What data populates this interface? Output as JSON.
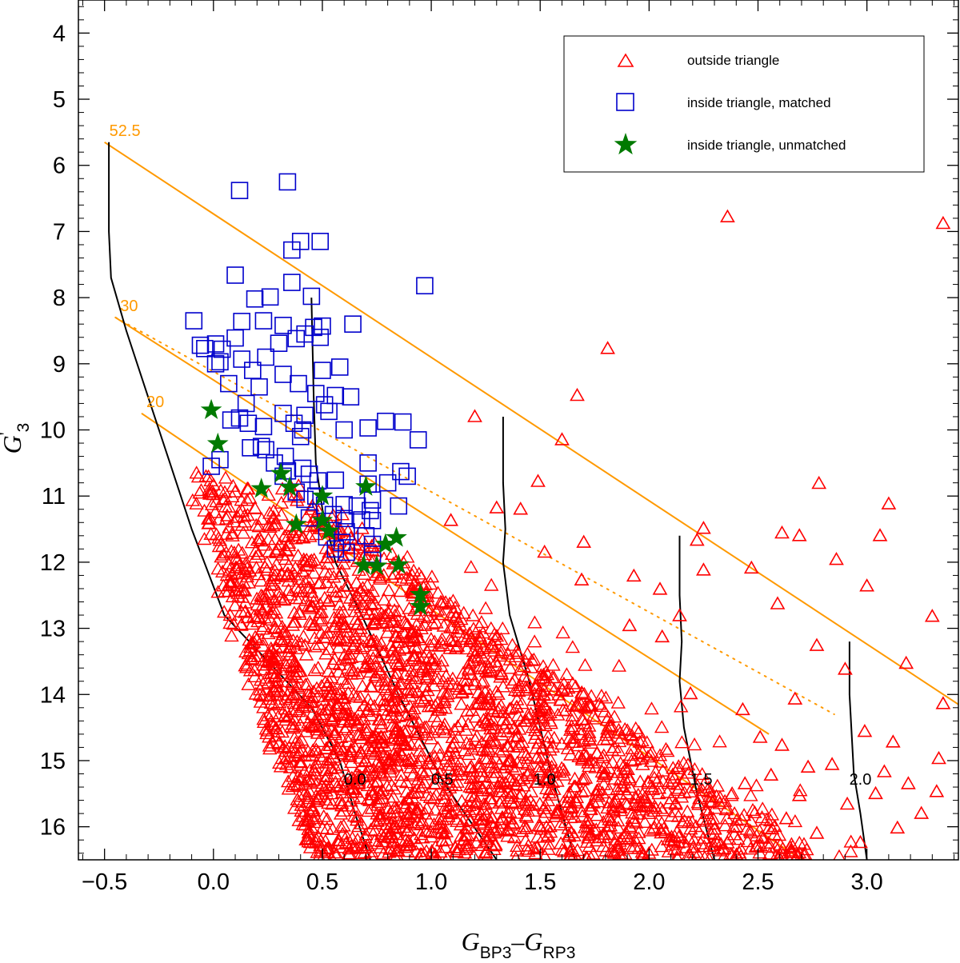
{
  "chart_data": {
    "type": "scatter",
    "x_axis": {
      "label_main": "G",
      "label_sub1": "BP3",
      "label_dash": "–",
      "label_main2": "G",
      "label_sub2": "RP3",
      "range": [
        -0.62,
        3.42
      ],
      "ticks": [
        "−0.5",
        "0.0",
        "0.5",
        "1.0",
        "1.5",
        "2.0",
        "2.5",
        "3.0"
      ],
      "tick_values": [
        -0.5,
        0.0,
        0.5,
        1.0,
        1.5,
        2.0,
        2.5,
        3.0
      ]
    },
    "y_axis": {
      "label_main": "G",
      "label_sup": "'",
      "label_sub": "3",
      "range": [
        3.5,
        16.5
      ],
      "inverted": true,
      "ticks": [
        "4",
        "5",
        "6",
        "7",
        "8",
        "9",
        "10",
        "11",
        "12",
        "13",
        "14",
        "15",
        "16"
      ],
      "tick_values": [
        4,
        5,
        6,
        7,
        8,
        9,
        10,
        11,
        12,
        13,
        14,
        15,
        16
      ]
    },
    "grid": false,
    "legend": {
      "placement": "top-right",
      "entries": [
        {
          "label": "outside triangle",
          "marker": "triangle",
          "color": "#ff0000"
        },
        {
          "label": "inside triangle, matched",
          "marker": "square",
          "color": "#0000cc"
        },
        {
          "label": "inside triangle, unmatched",
          "marker": "star",
          "color": "#007a00"
        }
      ]
    },
    "colors": {
      "triangle": "#ff0000",
      "square": "#0000cc",
      "star": "#007a00",
      "orange": "#ff9900",
      "black": "#000000"
    },
    "extinction_lines": [
      {
        "label": "52.5",
        "x": [
          -0.5,
          3.42
        ],
        "y": [
          5.65,
          14.15
        ],
        "style": "solid"
      },
      {
        "label": "30",
        "x": [
          -0.45,
          2.55
        ],
        "y": [
          8.3,
          14.6
        ],
        "style": "solid"
      },
      {
        "label": "",
        "x": [
          -0.45,
          2.85
        ],
        "y": [
          8.3,
          14.3
        ],
        "style": "dotted"
      },
      {
        "label": "20",
        "x": [
          -0.33,
          2.7
        ],
        "y": [
          9.75,
          16.5
        ],
        "style": "solid"
      }
    ],
    "isochrones": [
      {
        "label": "0.0",
        "x": [
          -0.48,
          -0.48,
          -0.47,
          -0.4,
          -0.3,
          -0.2,
          -0.1,
          0.05,
          0.25,
          0.45,
          0.58,
          0.65,
          0.72
        ],
        "y": [
          5.65,
          7.0,
          7.7,
          8.5,
          9.5,
          10.5,
          11.5,
          12.8,
          13.5,
          14.2,
          15.0,
          15.8,
          16.5
        ]
      },
      {
        "label": "0.5",
        "x": [
          0.45,
          0.46,
          0.47,
          0.5,
          0.56,
          0.68,
          0.85,
          1.05,
          1.3
        ],
        "y": [
          8.0,
          9.5,
          10.5,
          11.2,
          12.0,
          12.8,
          14.0,
          15.3,
          16.5
        ]
      },
      {
        "label": "1.0",
        "x": [
          1.33,
          1.33,
          1.34,
          1.33,
          1.36,
          1.45,
          1.55,
          1.66
        ],
        "y": [
          9.8,
          10.8,
          11.5,
          12.0,
          12.8,
          13.8,
          15.2,
          16.5
        ]
      },
      {
        "label": "1.5",
        "x": [
          2.14,
          2.14,
          2.15,
          2.14,
          2.16,
          2.22,
          2.3
        ],
        "y": [
          11.6,
          12.5,
          13.2,
          13.8,
          14.5,
          15.5,
          16.5
        ]
      },
      {
        "label": "2.0",
        "x": [
          2.92,
          2.92,
          2.93,
          2.94,
          2.97,
          3.0
        ],
        "y": [
          13.2,
          14.0,
          14.6,
          15.2,
          15.8,
          16.5
        ]
      }
    ],
    "iso_label_positions": [
      {
        "label": "0.0",
        "x": 0.65,
        "y": 15.28
      },
      {
        "label": "0.5",
        "x": 1.05,
        "y": 15.28
      },
      {
        "label": "1.0",
        "x": 1.52,
        "y": 15.28
      },
      {
        "label": "1.5",
        "x": 2.24,
        "y": 15.28
      },
      {
        "label": "2.0",
        "x": 2.97,
        "y": 15.28
      }
    ],
    "series": [
      {
        "name": "outside triangle",
        "marker": "triangle",
        "points": [
          [
            2.36,
            6.78
          ],
          [
            3.35,
            6.88
          ],
          [
            1.81,
            8.77
          ],
          [
            1.67,
            9.48
          ],
          [
            1.2,
            9.8
          ],
          [
            1.6,
            10.15
          ],
          [
            0.0,
            10.98
          ],
          [
            0.1,
            10.94
          ],
          [
            1.49,
            10.78
          ],
          [
            2.78,
            10.81
          ],
          [
            3.1,
            11.12
          ],
          [
            1.3,
            11.18
          ],
          [
            1.41,
            11.2
          ],
          [
            2.25,
            11.49
          ],
          [
            2.69,
            11.6
          ],
          [
            1.09,
            11.37
          ],
          [
            1.52,
            11.85
          ],
          [
            1.7,
            11.7
          ],
          [
            2.22,
            11.67
          ],
          [
            2.61,
            11.56
          ],
          [
            3.06,
            11.6
          ],
          [
            2.47,
            12.09
          ],
          [
            2.86,
            11.96
          ],
          [
            2.25,
            12.12
          ],
          [
            1.93,
            12.21
          ],
          [
            1.69,
            12.27
          ],
          [
            3.0,
            12.36
          ],
          [
            2.05,
            12.41
          ],
          [
            2.59,
            12.63
          ],
          [
            3.3,
            12.82
          ],
          [
            2.14,
            12.81
          ],
          [
            1.91,
            12.96
          ],
          [
            2.06,
            13.13
          ],
          [
            2.77,
            13.26
          ],
          [
            3.18,
            13.53
          ],
          [
            2.9,
            13.62
          ],
          [
            2.19,
            13.99
          ],
          [
            2.67,
            14.07
          ],
          [
            3.35,
            14.14
          ],
          [
            2.43,
            14.23
          ],
          [
            2.99,
            14.56
          ],
          [
            2.51,
            14.65
          ],
          [
            3.12,
            14.72
          ],
          [
            2.61,
            14.77
          ],
          [
            3.33,
            14.97
          ],
          [
            2.84,
            15.06
          ],
          [
            2.73,
            15.1
          ],
          [
            3.08,
            15.17
          ],
          [
            2.56,
            15.22
          ],
          [
            2.44,
            15.35
          ],
          [
            3.19,
            15.35
          ],
          [
            3.32,
            15.47
          ],
          [
            3.04,
            15.5
          ],
          [
            2.69,
            15.53
          ],
          [
            2.91,
            15.66
          ],
          [
            3.25,
            15.8
          ],
          [
            2.63,
            15.88
          ],
          [
            3.14,
            16.02
          ],
          [
            2.77,
            16.1
          ],
          [
            2.97,
            16.24
          ],
          [
            2.55,
            16.31
          ]
        ],
        "dense_region_shown": true
      },
      {
        "name": "inside triangle, matched",
        "marker": "square",
        "points": [
          [
            0.12,
            6.38
          ],
          [
            0.34,
            6.25
          ],
          [
            0.36,
            7.28
          ],
          [
            0.4,
            7.15
          ],
          [
            0.49,
            7.15
          ],
          [
            0.1,
            7.66
          ],
          [
            0.36,
            7.77
          ],
          [
            0.97,
            7.82
          ],
          [
            0.45,
            7.98
          ],
          [
            0.19,
            8.02
          ],
          [
            0.26,
            7.99
          ],
          [
            -0.09,
            8.35
          ],
          [
            0.23,
            8.35
          ],
          [
            0.13,
            8.36
          ],
          [
            0.32,
            8.42
          ],
          [
            0.46,
            8.45
          ],
          [
            0.5,
            8.43
          ],
          [
            0.64,
            8.4
          ],
          [
            -0.06,
            8.72
          ],
          [
            -0.04,
            8.77
          ],
          [
            0.01,
            8.7
          ],
          [
            0.04,
            8.78
          ],
          [
            0.1,
            8.61
          ],
          [
            0.3,
            8.69
          ],
          [
            0.38,
            8.62
          ],
          [
            0.42,
            8.55
          ],
          [
            0.49,
            8.6
          ],
          [
            0.24,
            8.9
          ],
          [
            0.13,
            8.93
          ],
          [
            0.01,
            9.0
          ],
          [
            0.03,
            8.97
          ],
          [
            0.18,
            9.1
          ],
          [
            0.32,
            9.16
          ],
          [
            0.5,
            9.1
          ],
          [
            0.58,
            9.05
          ],
          [
            0.07,
            9.3
          ],
          [
            0.39,
            9.3
          ],
          [
            0.21,
            9.35
          ],
          [
            0.47,
            9.45
          ],
          [
            0.56,
            9.48
          ],
          [
            0.63,
            9.5
          ],
          [
            0.51,
            9.62
          ],
          [
            0.15,
            9.6
          ],
          [
            0.32,
            9.75
          ],
          [
            0.42,
            9.78
          ],
          [
            0.53,
            9.72
          ],
          [
            0.12,
            9.82
          ],
          [
            0.16,
            9.9
          ],
          [
            0.08,
            9.85
          ],
          [
            0.23,
            9.95
          ],
          [
            0.37,
            9.9
          ],
          [
            0.41,
            10.0
          ],
          [
            0.4,
            10.1
          ],
          [
            0.6,
            10.0
          ],
          [
            0.79,
            9.87
          ],
          [
            0.87,
            9.88
          ],
          [
            0.71,
            9.97
          ],
          [
            0.94,
            10.15
          ],
          [
            0.22,
            10.25
          ],
          [
            0.17,
            10.27
          ],
          [
            0.24,
            10.3
          ],
          [
            0.33,
            10.4
          ],
          [
            0.28,
            10.5
          ],
          [
            0.71,
            10.5
          ],
          [
            0.03,
            10.45
          ],
          [
            -0.01,
            10.55
          ],
          [
            0.41,
            10.58
          ],
          [
            0.34,
            10.62
          ],
          [
            0.32,
            10.7
          ],
          [
            0.89,
            10.7
          ],
          [
            0.86,
            10.63
          ],
          [
            0.8,
            10.8
          ],
          [
            0.56,
            10.76
          ],
          [
            0.44,
            10.67
          ],
          [
            0.48,
            10.77
          ],
          [
            0.71,
            10.82
          ],
          [
            0.38,
            10.94
          ],
          [
            0.42,
            11.05
          ],
          [
            0.47,
            11.0
          ],
          [
            0.51,
            11.14
          ],
          [
            0.6,
            11.13
          ],
          [
            0.66,
            11.15
          ],
          [
            0.72,
            11.22
          ],
          [
            0.73,
            11.06
          ],
          [
            0.85,
            11.15
          ],
          [
            0.44,
            11.33
          ],
          [
            0.55,
            11.28
          ],
          [
            0.6,
            11.34
          ],
          [
            0.68,
            11.36
          ],
          [
            0.73,
            11.37
          ],
          [
            0.61,
            11.54
          ],
          [
            0.52,
            11.62
          ],
          [
            0.7,
            11.6
          ],
          [
            0.56,
            11.8
          ],
          [
            0.61,
            11.85
          ],
          [
            0.73,
            11.88
          ],
          [
            0.73,
            11.73
          ],
          [
            0.59,
            11.7
          ]
        ]
      },
      {
        "name": "inside triangle, unmatched",
        "marker": "star",
        "points": [
          [
            -0.01,
            9.7
          ],
          [
            0.02,
            10.21
          ],
          [
            0.31,
            10.66
          ],
          [
            0.22,
            10.89
          ],
          [
            0.35,
            10.87
          ],
          [
            0.7,
            10.86
          ],
          [
            0.5,
            11.0
          ],
          [
            0.38,
            11.43
          ],
          [
            0.5,
            11.37
          ],
          [
            0.53,
            11.53
          ],
          [
            0.79,
            11.73
          ],
          [
            0.84,
            11.63
          ],
          [
            0.69,
            12.05
          ],
          [
            0.75,
            12.06
          ],
          [
            0.85,
            12.04
          ],
          [
            0.95,
            12.49
          ],
          [
            0.95,
            12.67
          ]
        ]
      }
    ]
  }
}
